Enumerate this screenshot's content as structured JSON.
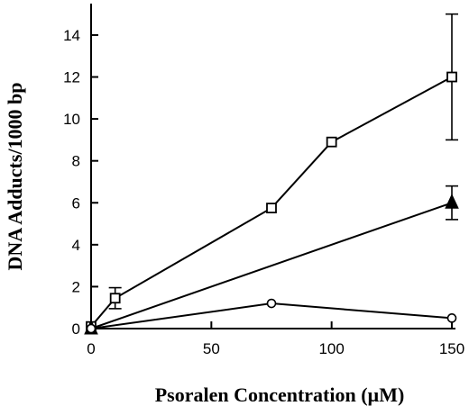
{
  "chart_data": {
    "type": "line",
    "xlabel": "Psoralen  Concentration  (µM)",
    "ylabel": "DNA  Adducts/1000  bp",
    "xlim": [
      0,
      150
    ],
    "ylim": [
      0,
      15.5
    ],
    "xticks": [
      0,
      50,
      100,
      150
    ],
    "yticks": [
      0,
      2,
      4,
      6,
      8,
      10,
      12,
      14
    ],
    "grid": false,
    "series": [
      {
        "marker": "square-open",
        "x": [
          0,
          10,
          75,
          100,
          150
        ],
        "y": [
          0.1,
          1.45,
          5.75,
          8.9,
          12.0
        ],
        "err": [
          null,
          0.5,
          null,
          null,
          3.0
        ]
      },
      {
        "marker": "triangle-filled",
        "x": [
          0,
          150
        ],
        "y": [
          0,
          6.0
        ],
        "err": [
          null,
          0.8
        ]
      },
      {
        "marker": "circle-open",
        "x": [
          0,
          75,
          150
        ],
        "y": [
          0,
          1.2,
          0.5
        ],
        "err": [
          null,
          null,
          null
        ]
      }
    ]
  }
}
